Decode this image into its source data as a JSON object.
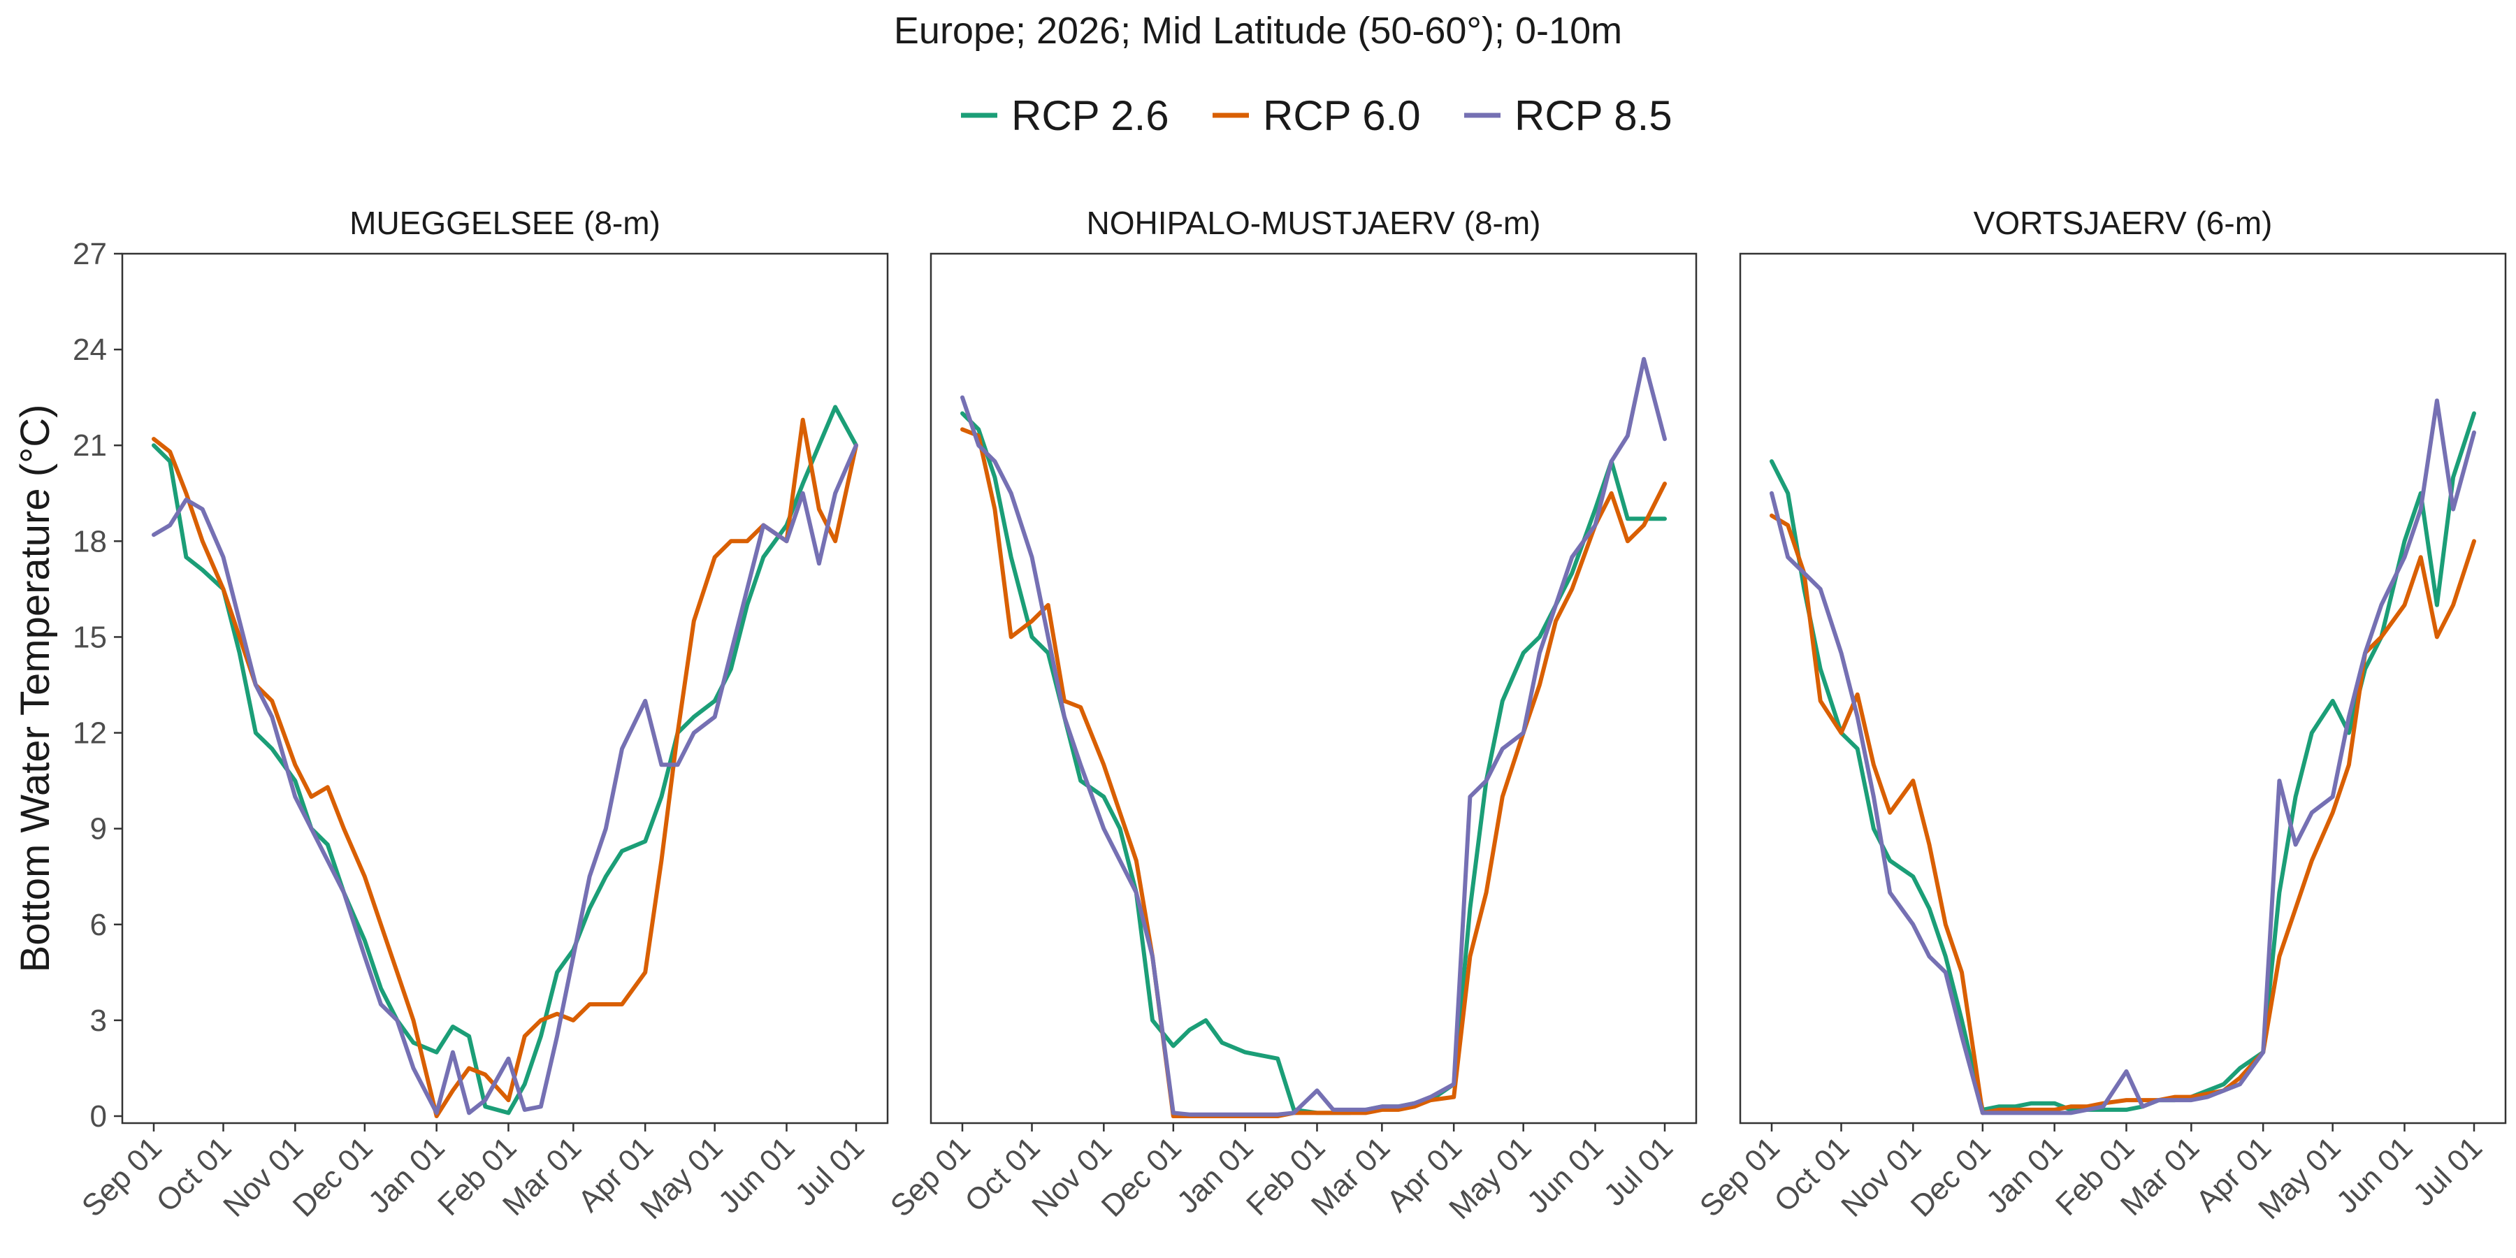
{
  "chart_data": {
    "type": "line",
    "title": "Europe;  2026;  Mid Latitude (50-60°);  0-10m",
    "ylabel": "Bottom Water Temperature (°C)",
    "xlabel": "",
    "ylim": [
      0,
      27
    ],
    "yticks": [
      "0",
      "3",
      "6",
      "9",
      "12",
      "15",
      "18",
      "21",
      "24",
      "27"
    ],
    "yticks_values": [
      0,
      3,
      6,
      9,
      12,
      15,
      18,
      21,
      24,
      27
    ],
    "xticks": [
      "Sep 01",
      "Oct 01",
      "Nov 01",
      "Dec 01",
      "Jan 01",
      "Feb 01",
      "Mar 01",
      "Apr 01",
      "May 01",
      "Jun 01",
      "Jul 01"
    ],
    "xticks_values": [
      "Sep 01",
      "Oct 01",
      "Nov 01",
      "Dec 01",
      "Jan 01",
      "Feb 01",
      "Mar 01",
      "Apr 01",
      "May 01",
      "Jun 01",
      "Jul 01"
    ],
    "legend_position": "top",
    "grid": false,
    "series_names": [
      "RCP 2.6",
      "RCP 6.0",
      "RCP 8.5"
    ],
    "series_colors": [
      "#1b9e77",
      "#d95f02",
      "#7570b3"
    ],
    "panels": [
      {
        "name": "MUEGGELSEE (8-m)",
        "series": [
          {
            "name": "RCP 2.6",
            "x": [
              "Sep 01",
              "Sep 08",
              "Sep 15",
              "Sep 22",
              "Oct 01",
              "Oct 08",
              "Oct 15",
              "Oct 22",
              "Nov 01",
              "Nov 08",
              "Nov 15",
              "Nov 22",
              "Dec 01",
              "Dec 08",
              "Dec 15",
              "Dec 22",
              "Jan 01",
              "Jan 08",
              "Jan 15",
              "Jan 22",
              "Feb 01",
              "Feb 08",
              "Feb 15",
              "Feb 22",
              "Mar 01",
              "Mar 08",
              "Mar 15",
              "Mar 22",
              "Apr 01",
              "Apr 08",
              "Apr 15",
              "Apr 22",
              "May 01",
              "May 08",
              "May 15",
              "May 22",
              "Jun 01",
              "Jun 08",
              "Jun 15",
              "Jun 22",
              "Jul 01"
            ],
            "values": [
              21.0,
              20.5,
              17.5,
              17.1,
              16.5,
              14.5,
              12.0,
              11.5,
              10.5,
              9.0,
              8.5,
              7.0,
              5.5,
              4.0,
              3.0,
              2.3,
              2.0,
              2.8,
              2.5,
              0.3,
              0.1,
              1.0,
              2.5,
              4.5,
              5.2,
              6.5,
              7.5,
              8.3,
              8.6,
              10.0,
              12.0,
              12.5,
              13.0,
              14.0,
              16.0,
              17.5,
              18.5,
              19.8,
              21.0,
              22.2,
              21.0
            ]
          },
          {
            "name": "RCP 6.0",
            "x": [
              "Sep 01",
              "Sep 08",
              "Sep 15",
              "Sep 22",
              "Oct 01",
              "Oct 08",
              "Oct 15",
              "Oct 22",
              "Nov 01",
              "Nov 08",
              "Nov 15",
              "Nov 22",
              "Dec 01",
              "Dec 08",
              "Dec 15",
              "Dec 22",
              "Jan 01",
              "Jan 08",
              "Jan 15",
              "Jan 22",
              "Feb 01",
              "Feb 08",
              "Feb 15",
              "Feb 22",
              "Mar 01",
              "Mar 08",
              "Mar 15",
              "Mar 22",
              "Apr 01",
              "Apr 08",
              "Apr 15",
              "Apr 22",
              "May 01",
              "May 08",
              "May 15",
              "May 22",
              "Jun 01",
              "Jun 08",
              "Jun 15",
              "Jun 22",
              "Jul 01"
            ],
            "values": [
              21.2,
              20.8,
              19.5,
              18.0,
              16.5,
              15.0,
              13.5,
              13.0,
              11.0,
              10.0,
              10.3,
              9.0,
              7.5,
              6.0,
              4.5,
              3.0,
              0.0,
              0.8,
              1.5,
              1.3,
              0.5,
              2.5,
              3.0,
              3.2,
              3.0,
              3.5,
              3.5,
              3.5,
              4.5,
              8.0,
              12.0,
              15.5,
              17.5,
              18.0,
              18.0,
              18.5,
              18.0,
              21.8,
              19.0,
              18.0,
              21.0
            ]
          },
          {
            "name": "RCP 8.5",
            "x": [
              "Sep 01",
              "Sep 08",
              "Sep 15",
              "Sep 22",
              "Oct 01",
              "Oct 08",
              "Oct 15",
              "Oct 22",
              "Nov 01",
              "Nov 08",
              "Nov 15",
              "Nov 22",
              "Dec 01",
              "Dec 08",
              "Dec 15",
              "Dec 22",
              "Jan 01",
              "Jan 08",
              "Jan 15",
              "Jan 22",
              "Feb 01",
              "Feb 08",
              "Feb 15",
              "Feb 22",
              "Mar 01",
              "Mar 08",
              "Mar 15",
              "Mar 22",
              "Apr 01",
              "Apr 08",
              "Apr 15",
              "Apr 22",
              "May 01",
              "May 08",
              "May 15",
              "May 22",
              "Jun 01",
              "Jun 08",
              "Jun 15",
              "Jun 22",
              "Jul 01"
            ],
            "values": [
              18.2,
              18.5,
              19.3,
              19.0,
              17.5,
              15.5,
              13.5,
              12.5,
              10.0,
              9.0,
              8.0,
              7.0,
              5.0,
              3.5,
              3.0,
              1.5,
              0.1,
              2.0,
              0.1,
              0.5,
              1.8,
              0.2,
              0.3,
              2.5,
              5.0,
              7.5,
              9.0,
              11.5,
              13.0,
              11.0,
              11.0,
              12.0,
              12.5,
              14.5,
              16.5,
              18.5,
              18.0,
              19.5,
              17.3,
              19.5,
              21.0
            ]
          }
        ]
      },
      {
        "name": "NOHIPALO-MUSTJAERV (8-m)",
        "series": [
          {
            "name": "RCP 2.6",
            "x": [
              "Sep 01",
              "Sep 08",
              "Sep 15",
              "Sep 22",
              "Oct 01",
              "Oct 08",
              "Oct 15",
              "Oct 22",
              "Nov 01",
              "Nov 08",
              "Nov 15",
              "Nov 22",
              "Dec 01",
              "Dec 08",
              "Dec 15",
              "Dec 22",
              "Jan 01",
              "Jan 08",
              "Jan 15",
              "Jan 22",
              "Feb 01",
              "Feb 08",
              "Feb 15",
              "Feb 22",
              "Mar 01",
              "Mar 08",
              "Mar 15",
              "Mar 22",
              "Apr 01",
              "Apr 08",
              "Apr 15",
              "Apr 22",
              "May 01",
              "May 08",
              "May 15",
              "May 22",
              "Jun 01",
              "Jun 08",
              "Jun 15",
              "Jun 22",
              "Jul 01"
            ],
            "values": [
              22.0,
              21.5,
              20.0,
              17.5,
              15.0,
              14.5,
              12.5,
              10.5,
              10.0,
              9.0,
              7.0,
              3.0,
              2.2,
              2.7,
              3.0,
              2.3,
              2.0,
              1.9,
              1.8,
              0.2,
              0.1,
              0.1,
              0.1,
              0.2,
              0.3,
              0.3,
              0.4,
              0.5,
              1.0,
              6.5,
              10.5,
              13.0,
              14.5,
              15.0,
              16.0,
              17.0,
              19.0,
              20.5,
              18.7,
              18.7,
              18.7
            ]
          },
          {
            "name": "RCP 6.0",
            "x": [
              "Sep 01",
              "Sep 08",
              "Sep 15",
              "Sep 22",
              "Oct 01",
              "Oct 08",
              "Oct 15",
              "Oct 22",
              "Nov 01",
              "Nov 08",
              "Nov 15",
              "Nov 22",
              "Dec 01",
              "Dec 08",
              "Dec 15",
              "Dec 22",
              "Jan 01",
              "Jan 08",
              "Jan 15",
              "Jan 22",
              "Feb 01",
              "Feb 08",
              "Feb 15",
              "Feb 22",
              "Mar 01",
              "Mar 08",
              "Mar 15",
              "Mar 22",
              "Apr 01",
              "Apr 08",
              "Apr 15",
              "Apr 22",
              "May 01",
              "May 08",
              "May 15",
              "May 22",
              "Jun 01",
              "Jun 08",
              "Jun 15",
              "Jun 22",
              "Jul 01"
            ],
            "values": [
              21.5,
              21.3,
              19.0,
              15.0,
              15.5,
              16.0,
              13.0,
              12.8,
              11.0,
              9.5,
              8.0,
              5.0,
              0.0,
              0.0,
              0.0,
              0.0,
              0.0,
              0.0,
              0.0,
              0.1,
              0.1,
              0.1,
              0.1,
              0.1,
              0.2,
              0.2,
              0.3,
              0.5,
              0.6,
              5.0,
              7.0,
              10.0,
              12.0,
              13.5,
              15.5,
              16.5,
              18.5,
              19.5,
              18.0,
              18.5,
              19.8
            ]
          },
          {
            "name": "RCP 8.5",
            "x": [
              "Sep 01",
              "Sep 08",
              "Sep 15",
              "Sep 22",
              "Oct 01",
              "Oct 08",
              "Oct 15",
              "Oct 22",
              "Nov 01",
              "Nov 08",
              "Nov 15",
              "Nov 22",
              "Dec 01",
              "Dec 08",
              "Dec 15",
              "Dec 22",
              "Jan 01",
              "Jan 08",
              "Jan 15",
              "Jan 22",
              "Feb 01",
              "Feb 08",
              "Feb 15",
              "Feb 22",
              "Mar 01",
              "Mar 08",
              "Mar 15",
              "Mar 22",
              "Apr 01",
              "Apr 08",
              "Apr 15",
              "Apr 22",
              "May 01",
              "May 08",
              "May 15",
              "May 22",
              "Jun 01",
              "Jun 08",
              "Jun 15",
              "Jun 22",
              "Jul 01"
            ],
            "values": [
              22.5,
              21.0,
              20.5,
              19.5,
              17.5,
              15.0,
              12.5,
              11.0,
              9.0,
              8.0,
              7.0,
              5.0,
              0.1,
              0.05,
              0.05,
              0.05,
              0.05,
              0.05,
              0.05,
              0.1,
              0.8,
              0.2,
              0.2,
              0.2,
              0.3,
              0.3,
              0.4,
              0.6,
              1.0,
              10.0,
              10.5,
              11.5,
              12.0,
              14.5,
              16.0,
              17.5,
              18.5,
              20.5,
              21.3,
              23.7,
              21.2
            ]
          }
        ]
      },
      {
        "name": "VORTSJAERV (6-m)",
        "series": [
          {
            "name": "RCP 2.6",
            "x": [
              "Sep 01",
              "Sep 08",
              "Sep 15",
              "Sep 22",
              "Oct 01",
              "Oct 08",
              "Oct 15",
              "Oct 22",
              "Nov 01",
              "Nov 08",
              "Nov 15",
              "Nov 22",
              "Dec 01",
              "Dec 08",
              "Dec 15",
              "Dec 22",
              "Jan 01",
              "Jan 08",
              "Jan 15",
              "Jan 22",
              "Feb 01",
              "Feb 08",
              "Feb 15",
              "Feb 22",
              "Mar 01",
              "Mar 08",
              "Mar 15",
              "Mar 22",
              "Apr 01",
              "Apr 08",
              "Apr 15",
              "Apr 22",
              "May 01",
              "May 08",
              "May 15",
              "May 22",
              "Jun 01",
              "Jun 08",
              "Jun 15",
              "Jun 22",
              "Jul 01"
            ],
            "values": [
              20.5,
              19.5,
              16.5,
              14.0,
              12.0,
              11.5,
              9.0,
              8.0,
              7.5,
              6.5,
              5.0,
              3.0,
              0.2,
              0.3,
              0.3,
              0.4,
              0.4,
              0.2,
              0.2,
              0.2,
              0.2,
              0.3,
              0.5,
              0.5,
              0.6,
              0.8,
              1.0,
              1.5,
              2.0,
              7.0,
              10.0,
              12.0,
              13.0,
              12.0,
              14.0,
              15.0,
              18.0,
              19.5,
              16.0,
              20.0,
              22.0
            ]
          },
          {
            "name": "RCP 6.0",
            "x": [
              "Sep 01",
              "Sep 08",
              "Sep 15",
              "Sep 22",
              "Oct 01",
              "Oct 08",
              "Oct 15",
              "Oct 22",
              "Nov 01",
              "Nov 08",
              "Nov 15",
              "Nov 22",
              "Dec 01",
              "Dec 08",
              "Dec 15",
              "Dec 22",
              "Jan 01",
              "Jan 08",
              "Jan 15",
              "Jan 22",
              "Feb 01",
              "Feb 08",
              "Feb 15",
              "Feb 22",
              "Mar 01",
              "Mar 08",
              "Mar 15",
              "Mar 22",
              "Apr 01",
              "Apr 08",
              "Apr 15",
              "Apr 22",
              "May 01",
              "May 08",
              "May 15",
              "May 22",
              "Jun 01",
              "Jun 08",
              "Jun 15",
              "Jun 22",
              "Jul 01"
            ],
            "values": [
              18.8,
              18.5,
              17.0,
              13.0,
              12.0,
              13.2,
              11.0,
              9.5,
              10.5,
              8.5,
              6.0,
              4.5,
              0.1,
              0.2,
              0.2,
              0.2,
              0.2,
              0.3,
              0.3,
              0.4,
              0.5,
              0.5,
              0.5,
              0.6,
              0.6,
              0.7,
              0.8,
              1.2,
              2.0,
              5.0,
              6.5,
              8.0,
              9.5,
              11.0,
              14.5,
              15.0,
              16.0,
              17.5,
              15.0,
              16.0,
              18.0
            ]
          },
          {
            "name": "RCP 8.5",
            "x": [
              "Sep 01",
              "Sep 08",
              "Sep 15",
              "Sep 22",
              "Oct 01",
              "Oct 08",
              "Oct 15",
              "Oct 22",
              "Nov 01",
              "Nov 08",
              "Nov 15",
              "Nov 22",
              "Dec 01",
              "Dec 08",
              "Dec 15",
              "Dec 22",
              "Jan 01",
              "Jan 08",
              "Jan 15",
              "Jan 22",
              "Feb 01",
              "Feb 08",
              "Feb 15",
              "Feb 22",
              "Mar 01",
              "Mar 08",
              "Mar 15",
              "Mar 22",
              "Apr 01",
              "Apr 08",
              "Apr 15",
              "Apr 22",
              "May 01",
              "May 08",
              "May 15",
              "May 22",
              "Jun 01",
              "Jun 08",
              "Jun 15",
              "Jun 22",
              "Jul 01"
            ],
            "values": [
              19.5,
              17.5,
              17.0,
              16.5,
              14.5,
              12.5,
              10.0,
              7.0,
              6.0,
              5.0,
              4.5,
              2.5,
              0.1,
              0.1,
              0.1,
              0.1,
              0.1,
              0.1,
              0.2,
              0.3,
              1.4,
              0.3,
              0.5,
              0.5,
              0.5,
              0.6,
              0.8,
              1.0,
              2.0,
              10.5,
              8.5,
              9.5,
              10.0,
              12.5,
              14.5,
              16.0,
              17.5,
              19.0,
              22.4,
              19.0,
              21.4
            ]
          }
        ]
      }
    ]
  }
}
